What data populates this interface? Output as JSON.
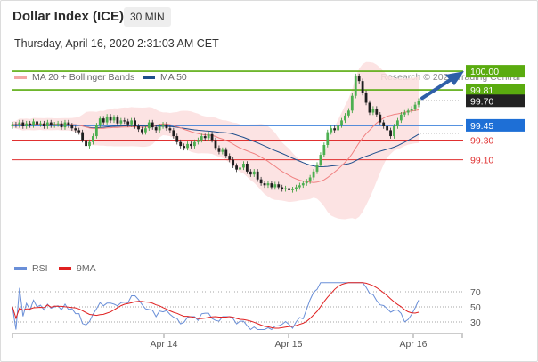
{
  "header": {
    "title": "Dollar Index (ICE)",
    "timeframe": "30 MIN",
    "date": "Thursday, April 16, 2020 2:31:03 AM CET"
  },
  "legend": {
    "ma20": "MA 20 + Bollinger Bands",
    "ma50": "MA 50",
    "copyright": "Research © 2020 Trading Central",
    "rsi": "RSI",
    "ma9": "9MA"
  },
  "colors": {
    "ma20": "#f08080",
    "ma50": "#1f4e8c",
    "band": "#fcdede",
    "green": "#5aab0f",
    "blue": "#1e6fd6",
    "red": "#e03030",
    "dark": "#222222",
    "rsi": "#6a8fd8",
    "rsi_ma": "#e02020"
  },
  "chart_data": [
    {
      "type": "candlestick",
      "title": "Dollar Index (ICE)",
      "ylim": [
        98.3,
        100.2
      ],
      "x_tick_labels": [
        "Apr 14",
        "Apr 15",
        "Apr 16"
      ],
      "levels": [
        {
          "value": 100.0,
          "label": "100.00",
          "kind": "target",
          "color": "#5aab0f"
        },
        {
          "value": 99.81,
          "label": "99.81",
          "kind": "resistance",
          "color": "#5aab0f"
        },
        {
          "value": 99.7,
          "label": "99.70",
          "kind": "last",
          "color": "#222222"
        },
        {
          "value": 99.45,
          "label": "99.45",
          "kind": "pivot",
          "color": "#1e6fd6"
        },
        {
          "value": 99.3,
          "label": "99.30",
          "kind": "support",
          "color": "#e03030"
        },
        {
          "value": 99.1,
          "label": "99.10",
          "kind": "support",
          "color": "#e03030"
        }
      ],
      "closes": [
        99.46,
        99.45,
        99.48,
        99.44,
        99.47,
        99.45,
        99.49,
        99.46,
        99.47,
        99.44,
        99.48,
        99.45,
        99.46,
        99.47,
        99.43,
        99.48,
        99.45,
        99.42,
        99.4,
        99.38,
        99.3,
        99.24,
        99.28,
        99.34,
        99.45,
        99.52,
        99.48,
        99.54,
        99.5,
        99.53,
        99.47,
        99.5,
        99.49,
        99.46,
        99.5,
        99.44,
        99.41,
        99.38,
        99.42,
        99.48,
        99.43,
        99.4,
        99.44,
        99.46,
        99.42,
        99.4,
        99.34,
        99.28,
        99.24,
        99.22,
        99.26,
        99.24,
        99.28,
        99.3,
        99.34,
        99.32,
        99.36,
        99.3,
        99.22,
        99.18,
        99.2,
        99.14,
        99.1,
        99.04,
        99.0,
        99.02,
        99.06,
        98.98,
        98.95,
        98.98,
        98.9,
        98.86,
        98.84,
        98.86,
        98.82,
        98.85,
        98.82,
        98.8,
        98.81,
        98.79,
        98.8,
        98.82,
        98.84,
        98.86,
        98.88,
        98.92,
        98.98,
        99.05,
        99.15,
        99.25,
        99.38,
        99.42,
        99.4,
        99.45,
        99.5,
        99.55,
        99.6,
        99.75,
        99.95,
        99.9,
        99.78,
        99.68,
        99.58,
        99.62,
        99.56,
        99.48,
        99.44,
        99.4,
        99.34,
        99.44,
        99.5,
        99.56,
        99.58,
        99.6,
        99.62,
        99.66,
        99.7
      ],
      "rsi_lines": [
        70,
        50,
        30
      ]
    }
  ]
}
